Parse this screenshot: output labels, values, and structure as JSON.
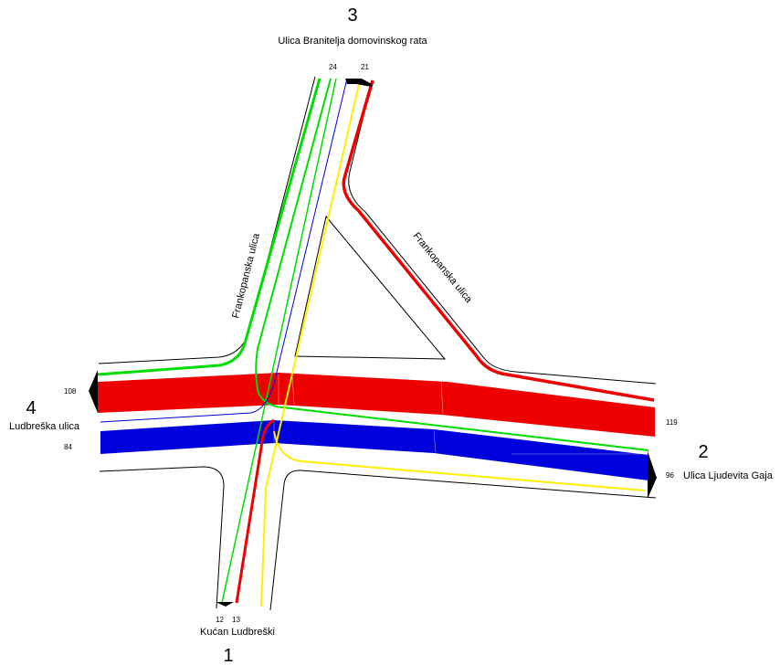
{
  "approaches": [
    {
      "number": "1",
      "name": "Kućan Ludbreški"
    },
    {
      "number": "2",
      "name": "Ulica Ljudevita Gaja"
    },
    {
      "number": "3",
      "name": "Ulica Branitelja domovinskog rata"
    },
    {
      "number": "4",
      "name": "Ludbreška ulica"
    }
  ],
  "street_labels": [
    "Frankopanska ulica",
    "Frankopanska ulica"
  ],
  "volumes": {
    "v24": "24",
    "v21": "21",
    "v108": "108",
    "v84": "84",
    "v119": "119",
    "v96": "96",
    "v12": "12",
    "v13": "13"
  },
  "colors": {
    "red": "#ee0000",
    "blue": "#0000dd",
    "green": "#00dd00",
    "yellow": "#ffee00",
    "road_edge": "#000000"
  }
}
